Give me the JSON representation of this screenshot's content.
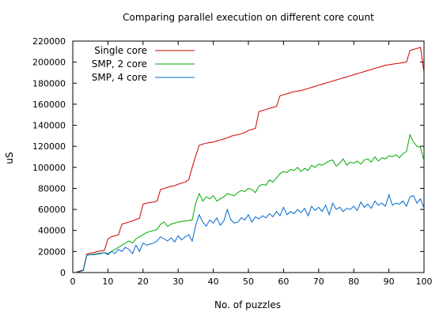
{
  "chart_data": {
    "type": "line",
    "title": "Comparing parallel execution on different core count",
    "xlabel": "No. of puzzles",
    "ylabel": "uS",
    "xlim": [
      0,
      100
    ],
    "ylim": [
      0,
      220000
    ],
    "xticks": [
      0,
      10,
      20,
      30,
      40,
      50,
      60,
      70,
      80,
      90,
      100
    ],
    "yticks": [
      0,
      20000,
      40000,
      60000,
      80000,
      100000,
      120000,
      140000,
      160000,
      180000,
      200000,
      220000
    ],
    "grid": false,
    "legend_position": "top-left",
    "x": [
      1,
      2,
      3,
      4,
      5,
      6,
      7,
      8,
      9,
      10,
      11,
      12,
      13,
      14,
      15,
      16,
      17,
      18,
      19,
      20,
      21,
      22,
      23,
      24,
      25,
      26,
      27,
      28,
      29,
      30,
      31,
      32,
      33,
      34,
      35,
      36,
      37,
      38,
      39,
      40,
      41,
      42,
      43,
      44,
      45,
      46,
      47,
      48,
      49,
      50,
      51,
      52,
      53,
      54,
      55,
      56,
      57,
      58,
      59,
      60,
      61,
      62,
      63,
      64,
      65,
      66,
      67,
      68,
      69,
      70,
      71,
      72,
      73,
      74,
      75,
      76,
      77,
      78,
      79,
      80,
      81,
      82,
      83,
      84,
      85,
      86,
      87,
      88,
      89,
      90,
      91,
      92,
      93,
      94,
      95,
      96,
      97,
      98,
      99,
      100
    ],
    "series": [
      {
        "name": "Single core",
        "color": "#cc0000",
        "values": [
          500,
          1500,
          2500,
          17500,
          18500,
          19000,
          20000,
          20500,
          21000,
          32000,
          34000,
          35000,
          36000,
          46000,
          47000,
          48000,
          49000,
          50500,
          51500,
          65000,
          66000,
          66500,
          67000,
          68000,
          79000,
          80000,
          81000,
          82000,
          82500,
          84000,
          85000,
          86000,
          88000,
          100000,
          111000,
          121000,
          122000,
          123000,
          123500,
          124000,
          125000,
          126000,
          127000,
          128000,
          129500,
          130500,
          131000,
          132000,
          133000,
          135000,
          136000,
          137000,
          153000,
          154000,
          155000,
          156000,
          157000,
          158000,
          168000,
          169000,
          170000,
          171000,
          172000,
          172500,
          173000,
          174000,
          175000,
          176000,
          177000,
          178000,
          179000,
          180000,
          181000,
          182000,
          183000,
          184000,
          185000,
          186000,
          187000,
          188000,
          189000,
          190000,
          191000,
          192000,
          193000,
          194000,
          195000,
          196000,
          197000,
          197500,
          198000,
          198500,
          199000,
          199500,
          200000,
          211000,
          212000,
          213000,
          214000,
          190000
        ]
      },
      {
        "name": "SMP, 2 core",
        "color": "#00aa00",
        "values": [
          500,
          1000,
          2000,
          16500,
          17000,
          17500,
          18000,
          18500,
          19000,
          18000,
          20000,
          22000,
          24000,
          26000,
          28000,
          30000,
          28000,
          32000,
          34000,
          36000,
          38000,
          39000,
          40000,
          41000,
          46000,
          48000,
          44000,
          46000,
          47000,
          48000,
          48500,
          49000,
          49500,
          50000,
          66000,
          75000,
          68000,
          72000,
          70000,
          73000,
          68000,
          70000,
          72000,
          75000,
          74000,
          73000,
          76000,
          78000,
          77000,
          80000,
          79000,
          76000,
          82000,
          84000,
          83000,
          88000,
          86000,
          90000,
          94000,
          96000,
          95000,
          98000,
          97000,
          100000,
          96000,
          99000,
          97000,
          102000,
          100000,
          103000,
          102000,
          104000,
          106000,
          107000,
          101000,
          104000,
          108000,
          102000,
          105000,
          104000,
          106000,
          103000,
          107000,
          108000,
          105000,
          110000,
          106000,
          109000,
          108000,
          111000,
          110000,
          112000,
          109000,
          113000,
          115000,
          131000,
          124000,
          120000,
          119000,
          106000
        ]
      },
      {
        "name": "SMP, 4 core",
        "color": "#0066cc",
        "values": [
          500,
          1000,
          2000,
          16500,
          17000,
          17000,
          17500,
          18000,
          19000,
          17000,
          20000,
          18000,
          22000,
          20000,
          24000,
          22000,
          18000,
          26000,
          20000,
          28000,
          26000,
          27000,
          28000,
          30000,
          34000,
          32000,
          30000,
          33000,
          29000,
          35000,
          31000,
          34000,
          36000,
          30000,
          45000,
          55000,
          48000,
          44000,
          50000,
          47000,
          52000,
          45000,
          49000,
          60000,
          50000,
          47000,
          48000,
          52000,
          50000,
          55000,
          48000,
          53000,
          51000,
          54000,
          52000,
          56000,
          53000,
          58000,
          54000,
          62000,
          55000,
          58000,
          56000,
          60000,
          57000,
          61000,
          54000,
          63000,
          59000,
          62000,
          58000,
          64000,
          55000,
          66000,
          60000,
          62000,
          58000,
          61000,
          60000,
          63000,
          59000,
          67000,
          62000,
          65000,
          61000,
          68000,
          64000,
          66000,
          63000,
          74000,
          64000,
          66000,
          65000,
          68000,
          63000,
          72000,
          73000,
          66000,
          70000,
          61000
        ]
      }
    ]
  }
}
